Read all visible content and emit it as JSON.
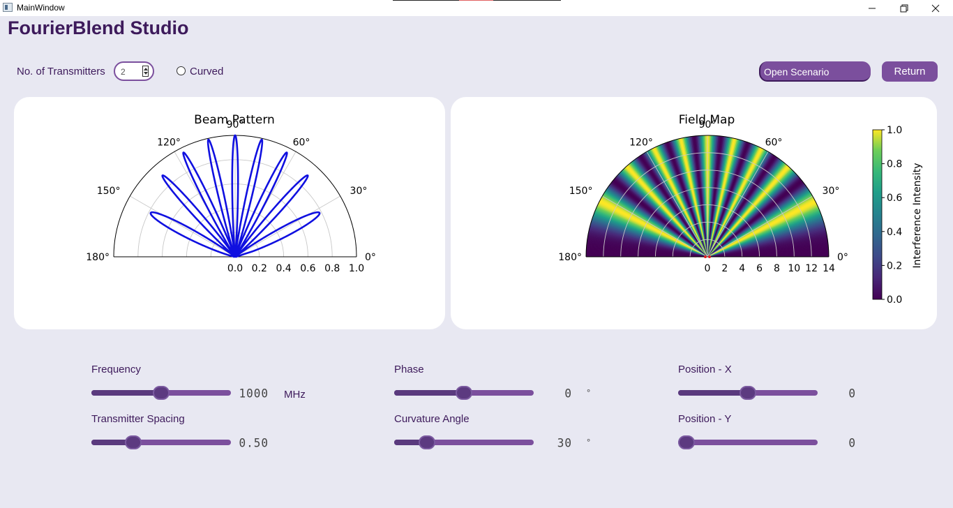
{
  "window": {
    "title": "MainWindow"
  },
  "header": {
    "app_title": "FourierBlend Studio",
    "transmitters_label": "No. of Transmitters",
    "transmitters_value": "2",
    "curved_label": "Curved",
    "scenario_select": "Open Scenario",
    "return_button": "Return"
  },
  "beam_pattern": {
    "title": "Beam Pattern",
    "angle_labels": [
      "0°",
      "30°",
      "60°",
      "90°",
      "120°",
      "150°",
      "180°"
    ],
    "radial_ticks": [
      "0.0",
      "0.2",
      "0.4",
      "0.6",
      "0.8",
      "1.0"
    ],
    "line_color": "#1010e0"
  },
  "field_map": {
    "title": "Field Map",
    "angle_labels": [
      "0°",
      "30°",
      "60°",
      "90°",
      "120°",
      "150°",
      "180°"
    ],
    "radial_ticks": [
      "0",
      "2",
      "4",
      "6",
      "8",
      "10",
      "12",
      "14"
    ],
    "colorbar_label": "Interference Intensity",
    "colorbar_ticks": [
      "0.0",
      "0.2",
      "0.4",
      "0.6",
      "0.8",
      "1.0"
    ],
    "colormap": "viridis"
  },
  "controls": {
    "frequency": {
      "label": "Frequency",
      "display": "1000",
      "unit": "MHz",
      "position": 0.5
    },
    "phase": {
      "label": "Phase",
      "display": "0",
      "unit": "°",
      "position": 0.5
    },
    "position_x": {
      "label": "Position - X",
      "display": "0",
      "position": 0.5
    },
    "spacing": {
      "label": "Transmitter Spacing",
      "display": "0.50",
      "position": 0.27
    },
    "curvature": {
      "label": "Curvature Angle",
      "display": "30",
      "unit": "°",
      "position": 0.2
    },
    "position_y": {
      "label": "Position - Y",
      "display": "0",
      "position": 0.0
    }
  }
}
